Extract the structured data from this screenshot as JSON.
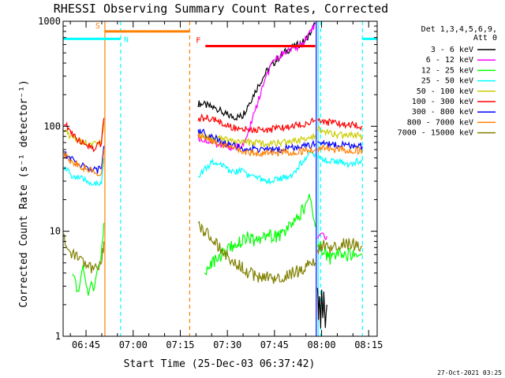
{
  "chart_data": {
    "type": "line",
    "title": "RHESSI Observing Summary Count Rates, Corrected",
    "xlabel": "Start Time (25-Dec-03 06:37:42)",
    "ylabel": "Corrected Count Rate (s⁻¹ detector⁻¹)",
    "yscale": "log",
    "ylim": [
      1,
      1000
    ],
    "xlim_minutes": [
      0,
      100
    ],
    "x_tick_labels": [
      "06:45",
      "07:00",
      "07:15",
      "07:30",
      "07:45",
      "08:00",
      "08:15"
    ],
    "x_tick_minutes": [
      7.3,
      22.3,
      37.3,
      52.3,
      67.3,
      82.3,
      97.3
    ],
    "y_tick_labels": [
      "1",
      "10",
      "100",
      "1000"
    ],
    "y_tick_values": [
      1,
      10,
      100,
      1000
    ],
    "legend": {
      "header": [
        "Det 1,3,4,5,6,9,",
        "Att 0"
      ],
      "placement": "right",
      "entries": [
        {
          "label": "3 - 6 keV",
          "color": "#000000"
        },
        {
          "label": "6 - 12 keV",
          "color": "#ff00ff"
        },
        {
          "label": "12 - 25 keV",
          "color": "#00ff00"
        },
        {
          "label": "25 - 50 keV",
          "color": "#00ffff"
        },
        {
          "label": "50 - 100 keV",
          "color": "#cccc00"
        },
        {
          "label": "100 - 300 keV",
          "color": "#ff0000"
        },
        {
          "label": "300 - 800 keV",
          "color": "#0000ff"
        },
        {
          "label": "800 - 7000 keV",
          "color": "#ff8000"
        },
        {
          "label": "7000 - 15000 keV",
          "color": "#808000"
        }
      ]
    },
    "flags": [
      {
        "label": "S",
        "color": "#ff8000",
        "start": 13.3,
        "end": 40.3,
        "y": 800
      },
      {
        "label": "N",
        "color": "#00ffff",
        "start": 0,
        "end": 18.3,
        "y": 680,
        "extra": [
          95.3,
          100
        ]
      },
      {
        "label": "F",
        "color": "#ff0000",
        "start": 45.3,
        "end": 80.3,
        "y": 580
      }
    ],
    "vlines": [
      {
        "x": 13.3,
        "color": "#ff8000",
        "dash": false
      },
      {
        "x": 18.3,
        "color": "#00ffff",
        "dash": true
      },
      {
        "x": 40.3,
        "color": "#ff8000",
        "dash": true
      },
      {
        "x": 80.6,
        "color": "#0000ff",
        "dash": false
      },
      {
        "x": 81.2,
        "color": "#00ffff",
        "dash": false
      },
      {
        "x": 82.0,
        "color": "#00ffff",
        "dash": true
      },
      {
        "x": 95.3,
        "color": "#00ffff",
        "dash": true
      }
    ],
    "series": [
      {
        "name": "3 - 6 keV",
        "color": "#000000",
        "segments": [
          {
            "x": [
              43,
              45,
              48,
              50,
              52,
              55,
              57,
              59,
              62,
              65,
              68,
              71,
              74,
              77,
              79,
              80.3
            ],
            "y": [
              165,
              160,
              150,
              140,
              128,
              122,
              125,
              160,
              240,
              340,
              430,
              520,
              580,
              650,
              800,
              950
            ]
          },
          {
            "x": [
              81,
              81.3,
              81.6,
              82,
              82.3,
              82.7,
              83,
              83.5,
              84
            ],
            "y": [
              3,
              1.5,
              2.5,
              1.2,
              2.8,
              1.4,
              2.5,
              1.3,
              2
            ]
          }
        ]
      },
      {
        "name": "6 - 12 keV",
        "color": "#ff00ff",
        "segments": [
          {
            "x": [
              43,
              45,
              48,
              50,
              52,
              54,
              56,
              58,
              60,
              62,
              64,
              66,
              68,
              70,
              72,
              74,
              76,
              78,
              80.3
            ],
            "y": [
              78,
              74,
              70,
              66,
              64,
              63,
              64,
              70,
              110,
              170,
              260,
              360,
              440,
              500,
              540,
              560,
              600,
              700,
              950
            ]
          },
          {
            "x": [
              81,
              82,
              83,
              84
            ],
            "y": [
              8.5,
              9,
              8.8,
              9
            ]
          }
        ]
      },
      {
        "name": "12 - 25 keV",
        "color": "#00ff00",
        "segments": [
          {
            "x": [
              3,
              4,
              5,
              6,
              7,
              8,
              9,
              10,
              11,
              12,
              13
            ],
            "y": [
              3.6,
              3.2,
              2.4,
              4.5,
              3.8,
              2.2,
              3.4,
              2.8,
              4.8,
              5.5,
              12
            ]
          },
          {
            "x": [
              45,
              47,
              49,
              51,
              53,
              55,
              57,
              59,
              61,
              63,
              65,
              67,
              69,
              71,
              73,
              75,
              77,
              78,
              79,
              80.3
            ],
            "y": [
              4,
              4.8,
              5.5,
              6.2,
              7,
              7.5,
              8.2,
              8.8,
              7.8,
              8.5,
              9.5,
              8.8,
              9.2,
              10,
              12,
              14,
              17,
              22,
              18,
              11
            ]
          },
          {
            "x": [
              81,
              83,
              85,
              87,
              89,
              90,
              95.3
            ],
            "y": [
              7.5,
              6.5,
              5.5,
              6,
              6,
              6,
              6
            ]
          }
        ]
      },
      {
        "name": "25 - 50 keV",
        "color": "#00ffff",
        "segments": [
          {
            "x": [
              0.3,
              3,
              6,
              9,
              11,
              12.2,
              13
            ],
            "y": [
              40,
              34,
              31,
              29,
              28,
              29,
              50
            ]
          },
          {
            "x": [
              43,
              45,
              47,
              49,
              51,
              53,
              55,
              57,
              59,
              61,
              63,
              65,
              67,
              69,
              71,
              73,
              75,
              77,
              79,
              80.3
            ],
            "y": [
              34,
              39,
              44,
              46,
              42,
              38,
              36,
              40,
              34,
              32,
              31,
              30,
              31,
              31,
              33,
              35,
              42,
              49,
              54,
              55
            ]
          },
          {
            "x": [
              81,
              83,
              85,
              87,
              89,
              91,
              93,
              95.3
            ],
            "y": [
              52,
              48,
              47,
              45,
              46,
              44,
              46,
              47
            ]
          }
        ]
      },
      {
        "name": "50 - 100 keV",
        "color": "#cccc00",
        "segments": [
          {
            "x": [
              0.3,
              2,
              4,
              6,
              8,
              10,
              12.2,
              13
            ],
            "y": [
              88,
              82,
              76,
              72,
              70,
              67,
              70,
              110
            ]
          },
          {
            "x": [
              43,
              45,
              47,
              49,
              51,
              53,
              55,
              57,
              59,
              61,
              63,
              65,
              67,
              69,
              71,
              73,
              75,
              77,
              79,
              80.3
            ],
            "y": [
              82,
              80,
              78,
              76,
              74,
              72,
              71,
              70,
              70,
              69,
              69,
              69,
              69,
              70,
              70,
              71,
              72,
              76,
              80,
              82
            ]
          },
          {
            "x": [
              81,
              83,
              85,
              87,
              89,
              91,
              93,
              95.3
            ],
            "y": [
              96,
              92,
              86,
              83,
              82,
              81,
              81,
              80
            ]
          }
        ]
      },
      {
        "name": "100 - 300 keV",
        "color": "#ff0000",
        "segments": [
          {
            "x": [
              0.3,
              2,
              4,
              6,
              8,
              10,
              12.2,
              13
            ],
            "y": [
              110,
              90,
              78,
              70,
              66,
              62,
              70,
              120
            ]
          },
          {
            "x": [
              43,
              45,
              47,
              49,
              51,
              53,
              55,
              57,
              59,
              61,
              63,
              65,
              67,
              69,
              71,
              73,
              75,
              77,
              79,
              80.3
            ],
            "y": [
              118,
              120,
              118,
              112,
              105,
              100,
              96,
              93,
              92,
              92,
              93,
              93,
              94,
              95,
              98,
              100,
              103,
              106,
              110,
              112
            ]
          },
          {
            "x": [
              81,
              83,
              85,
              87,
              89,
              91,
              93,
              95.3
            ],
            "y": [
              116,
              112,
              108,
              106,
              104,
              103,
              102,
              100
            ]
          }
        ]
      },
      {
        "name": "300 - 800 keV",
        "color": "#0000ff",
        "segments": [
          {
            "x": [
              0.3,
              2,
              4,
              6,
              8,
              10,
              12.2,
              13
            ],
            "y": [
              56,
              50,
              45,
              42,
              40,
              38,
              39,
              65
            ]
          },
          {
            "x": [
              43,
              45,
              47,
              49,
              51,
              53,
              55,
              57,
              59,
              61,
              63,
              65,
              67,
              69,
              71,
              73,
              75,
              77,
              79,
              80.3
            ],
            "y": [
              88,
              86,
              80,
              75,
              70,
              66,
              64,
              62,
              61,
              60,
              60,
              60,
              60,
              60,
              61,
              62,
              63,
              64,
              66,
              68
            ]
          },
          {
            "x": [
              81,
              83,
              85,
              87,
              89,
              91,
              93,
              95.3
            ],
            "y": [
              68,
              68,
              67,
              66,
              66,
              65,
              65,
              64
            ]
          }
        ]
      },
      {
        "name": "800 - 7000 keV",
        "color": "#ff8000",
        "segments": [
          {
            "x": [
              0.3,
              2,
              4,
              6,
              8,
              10,
              12.2,
              13
            ],
            "y": [
              54,
              48,
              44,
              41,
              39,
              37,
              35,
              60
            ]
          },
          {
            "x": [
              43,
              45,
              47,
              49,
              51,
              53,
              55,
              57,
              59,
              61,
              63,
              65,
              67,
              69,
              71,
              73,
              75,
              77,
              79,
              80.3
            ],
            "y": [
              80,
              78,
              74,
              70,
              66,
              62,
              60,
              58,
              57,
              56,
              56,
              56,
              56,
              56,
              57,
              57,
              58,
              58,
              59,
              60
            ]
          },
          {
            "x": [
              81,
              83,
              85,
              87,
              89,
              91,
              93,
              95.3
            ],
            "y": [
              62,
              62,
              61,
              60,
              60,
              60,
              59,
              59
            ]
          }
        ]
      },
      {
        "name": "7000 - 15000 keV",
        "color": "#808000",
        "segments": [
          {
            "x": [
              0.3,
              1,
              2,
              3,
              4,
              5,
              6,
              7,
              8,
              9,
              10,
              11,
              12,
              12.6,
              13
            ],
            "y": [
              9,
              7.5,
              6.5,
              6,
              6,
              5.2,
              5.2,
              5,
              4.8,
              4.4,
              4.2,
              4.5,
              5,
              6.2,
              8
            ]
          },
          {
            "x": [
              43,
              45,
              47,
              49,
              51,
              53,
              55,
              57,
              59,
              61,
              63,
              65,
              67,
              69,
              71,
              73,
              75,
              77,
              79,
              80.3
            ],
            "y": [
              11,
              10,
              9,
              7.5,
              6.5,
              5.5,
              5,
              4.5,
              4,
              3.8,
              3.6,
              3.6,
              3.6,
              3.7,
              3.8,
              4,
              4.2,
              4.5,
              4.8,
              5
            ]
          },
          {
            "x": [
              81,
              83,
              85,
              87,
              89,
              91,
              93,
              95.3
            ],
            "y": [
              6.5,
              7.2,
              7,
              7.5,
              7.8,
              7.5,
              7.5,
              7.2
            ]
          }
        ]
      }
    ]
  },
  "footer": {
    "timestamp": "27-Oct-2021 03:25"
  }
}
